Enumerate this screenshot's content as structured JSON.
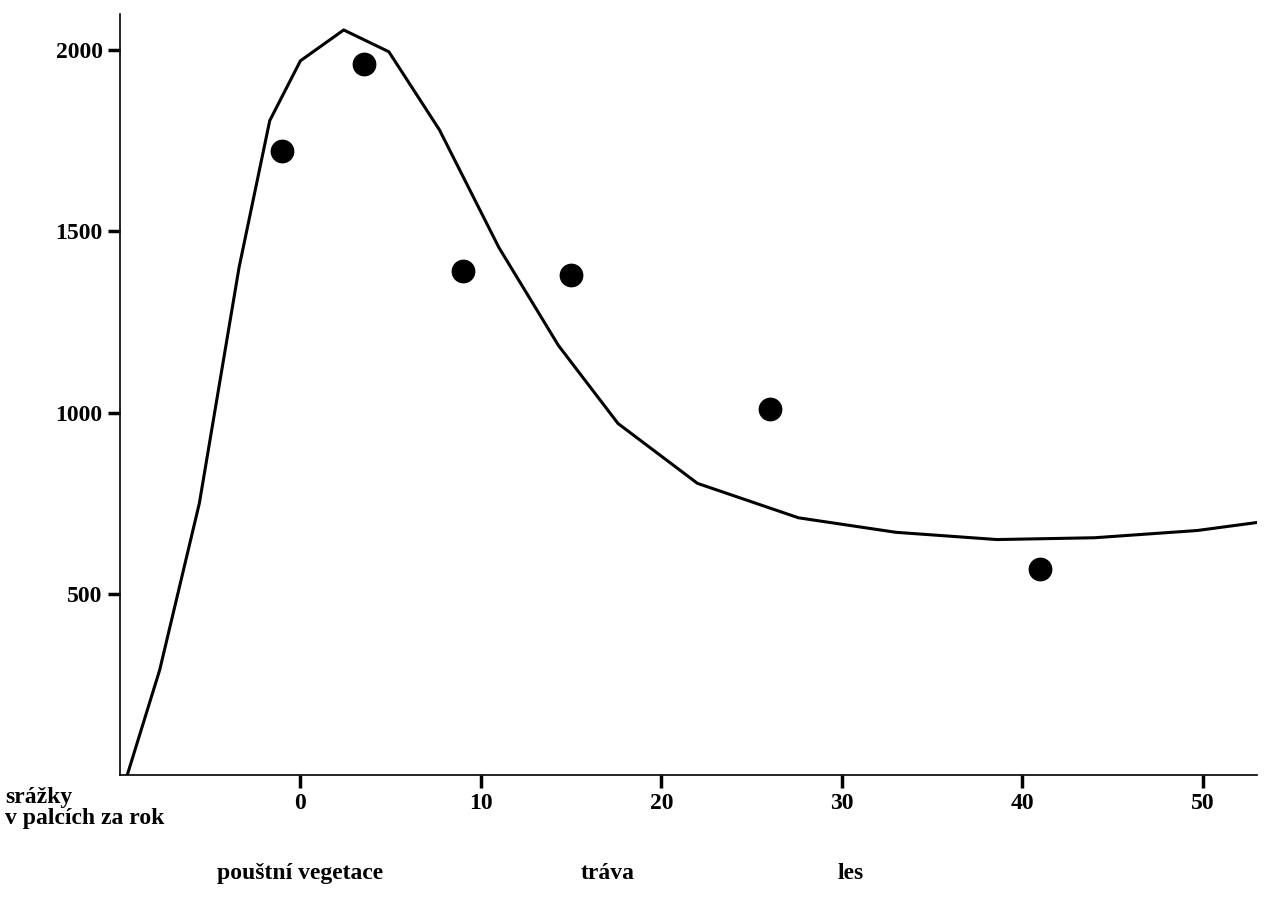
{
  "chart_data": {
    "type": "scatter",
    "xlabel": "srážky\nv palcích za rok",
    "series": [
      {
        "type": "scatter",
        "color": "#000000",
        "marker": "o",
        "x": [
          -1,
          3.5,
          9,
          15,
          26,
          41
        ],
        "values": [
          1720,
          1960,
          1390,
          1380,
          1010,
          570
        ]
      },
      {
        "type": "line",
        "color": "#000000",
        "line_style": "solid",
        "x": [
          -9.6,
          -7.8,
          -5.6,
          -3.4,
          -1.7,
          0,
          2.4,
          4.9,
          7.7,
          11,
          14.3,
          17.6,
          22,
          27.6,
          33,
          38.6,
          44,
          49.7,
          53
        ],
        "values": [
          0,
          290,
          750,
          1400,
          1805,
          1970,
          2055,
          1995,
          1780,
          1455,
          1185,
          970,
          805,
          710,
          670,
          650,
          655,
          675,
          697
        ]
      }
    ],
    "xlim": [
      -10,
      53
    ],
    "ylim": [
      0,
      2100
    ],
    "xticks": [
      0,
      10,
      20,
      30,
      40,
      50
    ],
    "yticks": [
      500,
      1000,
      1500,
      2000
    ],
    "annotations": [
      {
        "text": "pouštní vegetace",
        "x": 0
      },
      {
        "text": "tráva",
        "x": 17
      },
      {
        "text": "les",
        "x": 30.5
      }
    ],
    "grid": false
  }
}
